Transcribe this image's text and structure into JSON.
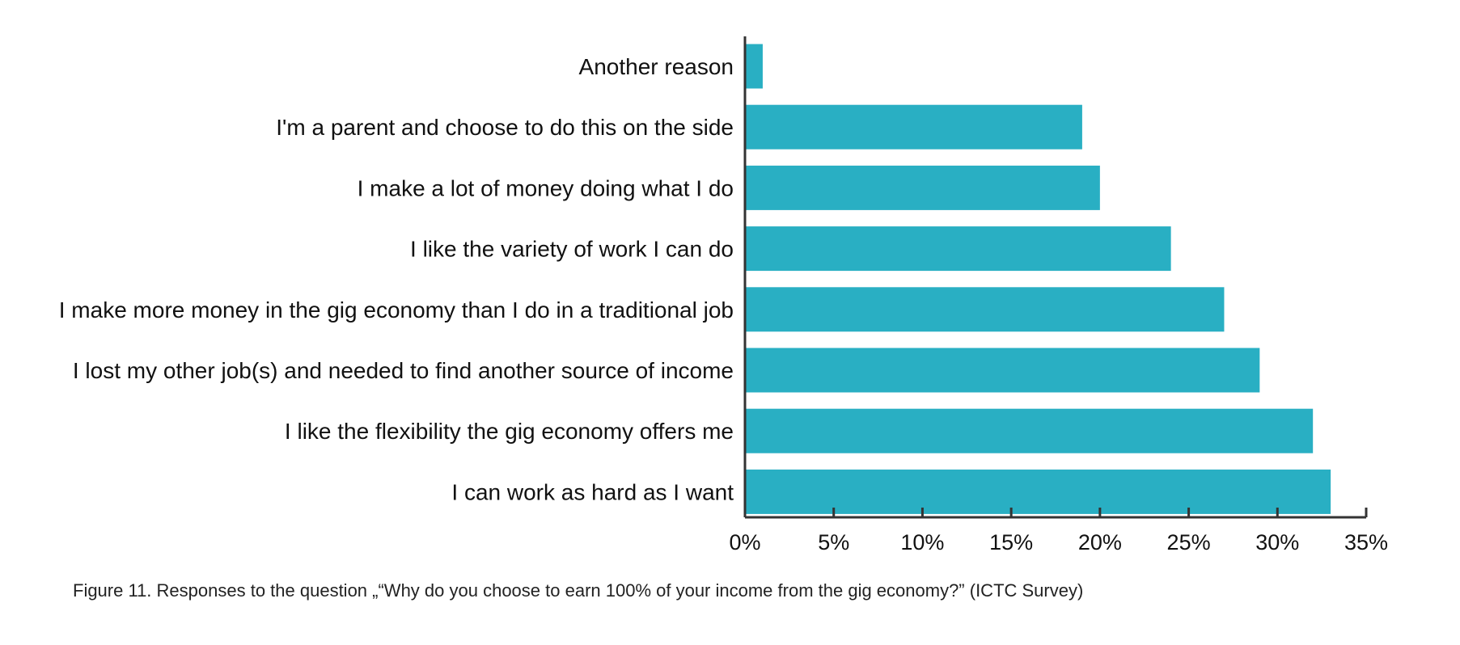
{
  "caption": "Figure 11. Responses to the question „“Why do you choose to earn 100% of your income from the gig economy?” (ICTC Survey)",
  "chart_data": {
    "type": "bar",
    "orientation": "horizontal",
    "title": "",
    "xlabel": "",
    "ylabel": "",
    "categories": [
      "Another reason",
      "I'm a parent and choose to do this on the side",
      "I make a lot of money doing what I do",
      "I like the variety of work I can do",
      "I make more money in the gig economy than I do in a traditional job",
      "I lost my other job(s) and needed to find another source of income",
      "I like the flexibility the gig economy offers me",
      "I can work as hard as I want"
    ],
    "values": [
      1,
      19,
      20,
      24,
      27,
      29,
      32,
      33
    ],
    "unit": "%",
    "xlim": [
      0,
      35
    ],
    "xticks": [
      0,
      5,
      10,
      15,
      20,
      25,
      30,
      35
    ],
    "xtick_labels": [
      "0%",
      "5%",
      "10%",
      "15%",
      "20%",
      "25%",
      "30%",
      "35%"
    ],
    "grid": false,
    "legend": "none",
    "bar_color": "#29afc3",
    "axis_color": "#333333"
  }
}
